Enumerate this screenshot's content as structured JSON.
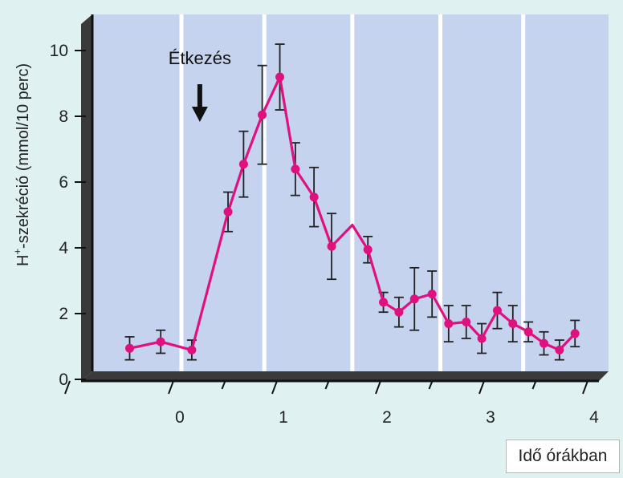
{
  "chart_data": {
    "type": "line",
    "xlabel": "Idő órákban",
    "ylabel_main": "H",
    "ylabel_sup": "+",
    "ylabel_rest": "-szekréció (mmol/10 perc)",
    "xlim": [
      -1,
      4
    ],
    "ylim": [
      0,
      11
    ],
    "xticks": [
      0,
      1,
      2,
      3,
      4
    ],
    "yticks": [
      0,
      2,
      4,
      6,
      8,
      10
    ],
    "annotation": {
      "text": "Étkezés",
      "x": 0.1
    },
    "colors": {
      "line": "#e0117f",
      "point": "#e0117f",
      "band": "#c5d3ef",
      "separator": "#ffffff",
      "errorbar": "#222222",
      "axis": "#111111"
    },
    "series": [
      {
        "points": [
          {
            "x": -0.5,
            "y": 0.7,
            "err": 0.35
          },
          {
            "x": -0.2,
            "y": 0.9,
            "err": 0.35
          },
          {
            "x": 0.1,
            "y": 0.65,
            "err": 0.3
          },
          {
            "x": 0.45,
            "y": 4.85,
            "err": 0.6
          },
          {
            "x": 0.6,
            "y": 6.3,
            "err": 1.0
          },
          {
            "x": 0.78,
            "y": 7.8,
            "err": 1.5
          },
          {
            "x": 0.95,
            "y": 8.95,
            "err": 1.0
          },
          {
            "x": 1.1,
            "y": 6.15,
            "err": 0.8
          },
          {
            "x": 1.28,
            "y": 5.3,
            "err": 0.9
          },
          {
            "x": 1.45,
            "y": 3.8,
            "err": 1.0
          },
          {
            "x": 1.65,
            "y": 4.45,
            "err": null
          },
          {
            "x": 1.8,
            "y": 3.7,
            "err": 0.4
          },
          {
            "x": 1.95,
            "y": 2.1,
            "err": 0.3
          },
          {
            "x": 2.1,
            "y": 1.8,
            "err": 0.45
          },
          {
            "x": 2.25,
            "y": 2.2,
            "err": 0.95
          },
          {
            "x": 2.42,
            "y": 2.35,
            "err": 0.7
          },
          {
            "x": 2.58,
            "y": 1.45,
            "err": 0.55
          },
          {
            "x": 2.75,
            "y": 1.5,
            "err": 0.5
          },
          {
            "x": 2.9,
            "y": 1.0,
            "err": 0.45
          },
          {
            "x": 3.05,
            "y": 1.85,
            "err": 0.55
          },
          {
            "x": 3.2,
            "y": 1.45,
            "err": 0.55
          },
          {
            "x": 3.35,
            "y": 1.2,
            "err": 0.3
          },
          {
            "x": 3.5,
            "y": 0.85,
            "err": 0.35
          },
          {
            "x": 3.65,
            "y": 0.65,
            "err": 0.3
          },
          {
            "x": 3.8,
            "y": 1.15,
            "err": 0.4
          }
        ]
      }
    ]
  }
}
